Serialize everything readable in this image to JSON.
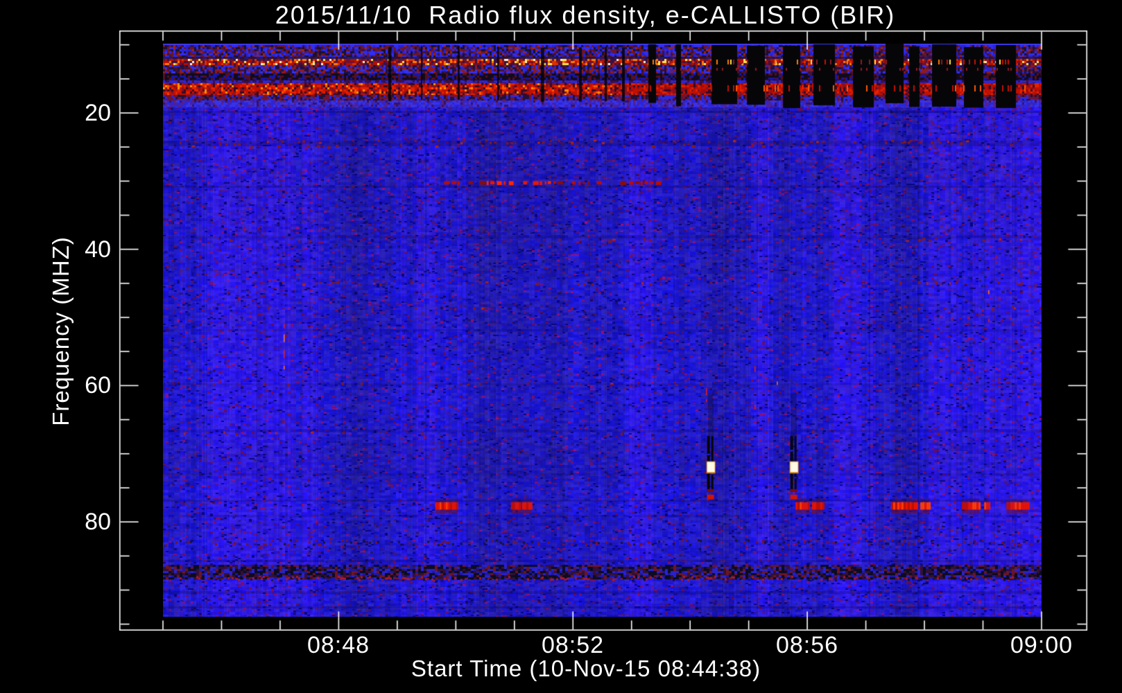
{
  "figure": {
    "title": "2015/11/10  Radio flux density, e-CALLISTO (BIR)",
    "xlabel": "Start Time (10-Nov-15 08:44:38)",
    "ylabel": "Frequency (MHZ)"
  },
  "chart_data": {
    "type": "heatmap",
    "title": "2015/11/10  Radio flux density, e-CALLISTO (BIR)",
    "xlabel": "Start Time (10-Nov-15 08:44:38)",
    "ylabel": "Frequency (MHZ)",
    "x_axis": {
      "major_tick_labels": [
        "08:48",
        "08:52",
        "08:56",
        "09:00"
      ],
      "major_tick_minutes": [
        3,
        7,
        11,
        15
      ],
      "minor_tick_every_min": 1,
      "data_start": "08:45",
      "data_end": "09:00",
      "span_minutes": 15
    },
    "y_axis": {
      "major_tick_labels": [
        "20",
        "40",
        "60",
        "80"
      ],
      "major_ticks_mhz": [
        20,
        40,
        60,
        80
      ],
      "minor_tick_every_mhz": 5,
      "data_range_mhz": [
        10,
        94
      ],
      "inverted": true
    },
    "colormap": {
      "background": "#2a24dd",
      "low": "#05050a",
      "mid": "#c11000",
      "high": "#ffe44a",
      "peak": "#fffbe6"
    },
    "features": {
      "top_rfi_band": {
        "freq_mhz": [
          10,
          19.4
        ],
        "time_min": [
          0,
          15
        ],
        "desc": "dense speckled HF interference band",
        "bright_row_mhz": [
          12.2,
          13.2
        ],
        "red_band_mhz": [
          15.8,
          17.5
        ],
        "dark_band_mhz": [
          14.4,
          15.4
        ],
        "dropout_columns_min": [
          8.3,
          14.3
        ]
      },
      "row_30mhz": {
        "freq_mhz": 30.2,
        "time_min": [
          4.8,
          8.6
        ],
        "bright_min": [
          5.45,
          6.65
        ]
      },
      "dashes_78mhz": {
        "freq_mhz": [
          77.1,
          78.2
        ],
        "segments_min": [
          [
            4.65,
            4.95
          ],
          [
            4.97,
            5.04
          ],
          [
            5.94,
            6.11
          ],
          [
            6.13,
            6.29
          ],
          [
            10.8,
            11.04
          ],
          [
            11.08,
            11.26
          ],
          [
            12.43,
            12.88
          ],
          [
            12.93,
            13.09
          ],
          [
            13.64,
            13.95
          ],
          [
            14.02,
            14.1
          ],
          [
            14.4,
            14.77
          ]
        ]
      },
      "calibration_bars": {
        "times_min": [
          9.29,
          10.71
        ],
        "freq_mhz": [
          67.4,
          75.6
        ],
        "white_core_mhz": [
          71.2,
          72.7
        ],
        "red_tip_mhz": [
          76.0,
          76.7
        ]
      },
      "bottom_dark_band": {
        "freq_mhz": [
          86.3,
          88.3
        ]
      },
      "bottom_speckle_band": {
        "freq_mhz": [
          82.5,
          83.5
        ]
      },
      "red_row_bottom": {
        "freq_mhz": [
          87.9,
          88.6
        ]
      },
      "faint_rows": [
        {
          "f": 24.1,
          "p": 0.1
        },
        {
          "f": 24.7,
          "p": 0.07
        },
        {
          "f": 38.5,
          "p": 0.06
        },
        {
          "f": 44.9,
          "p": 0.09
        },
        {
          "f": 48.5,
          "p": 0.05
        },
        {
          "f": 59.7,
          "p": 0.05
        },
        {
          "f": 66.8,
          "p": 0.05
        }
      ],
      "thin_marks": [
        {
          "t": 2.06,
          "f": [
            [
              51.0,
              51.6
            ],
            [
              52.5,
              53.6
            ],
            [
              54.8,
              56.0
            ],
            [
              57.1,
              57.6
            ]
          ]
        },
        {
          "t": 3.97,
          "f": [
            [
              56.0,
              56.6
            ]
          ]
        },
        {
          "t": 9.27,
          "f": [
            [
              60.4,
              61.4
            ],
            [
              62.0,
              62.4
            ]
          ]
        },
        {
          "t": 10.1,
          "f": [
            [
              57.2,
              58.0
            ],
            [
              62.8,
              63.4
            ]
          ]
        },
        {
          "t": 10.48,
          "f": [
            [
              59.4,
              59.9
            ]
          ]
        },
        {
          "t": 14.09,
          "f": [
            [
              46.0,
              46.6
            ],
            [
              50.2,
              50.7
            ]
          ]
        }
      ]
    }
  }
}
